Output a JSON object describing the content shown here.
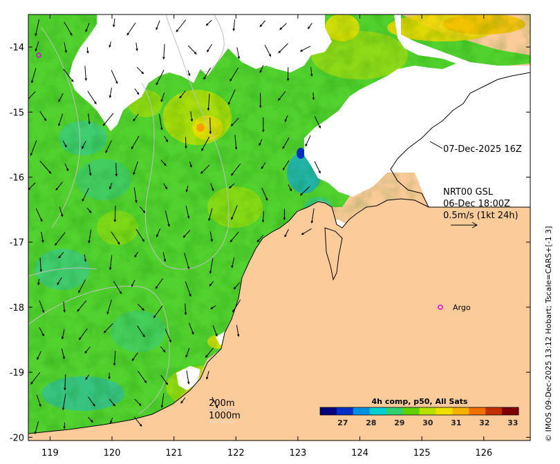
{
  "map": {
    "x_ticks": [
      "119",
      "120",
      "121",
      "122",
      "123",
      "124",
      "125",
      "126"
    ],
    "y_ticks": [
      "-14",
      "-15",
      "-16",
      "-17",
      "-18",
      "-19",
      "-20"
    ],
    "lon_range": [
      118.65,
      126.75
    ],
    "lat_range": [
      -20.05,
      -13.5
    ]
  },
  "annotations": {
    "sst_time": "07-Dec-2025 16Z",
    "current_product": "NRT00 GSL",
    "current_time": "06-Dec 18:00Z",
    "current_scale": "0.5m/s (1kt 24h)",
    "depth_200": "200m",
    "depth_1000": "1000m",
    "argo_label": "Argo"
  },
  "argo_position": {
    "lon": 125.3,
    "lat": -18.0
  },
  "colorbar": {
    "title": "4h comp, p50, All Sats",
    "ticks": [
      "27",
      "28",
      "29",
      "30",
      "31",
      "32",
      "33"
    ],
    "range": [
      26.2,
      33.2
    ],
    "colors": [
      "#00007f",
      "#0030c8",
      "#0090e0",
      "#00d0d0",
      "#30d070",
      "#60d000",
      "#b8e000",
      "#f0e000",
      "#f8b000",
      "#f07000",
      "#c03000",
      "#7f0000"
    ]
  },
  "credit": "© IMOS 09-Dec-2025 13:12 Hobart; Tscale=CARS+[-1 3]",
  "colors": {
    "land": "#fccb9a",
    "water_green": "#52d22e",
    "cloud": "#ffffff"
  }
}
